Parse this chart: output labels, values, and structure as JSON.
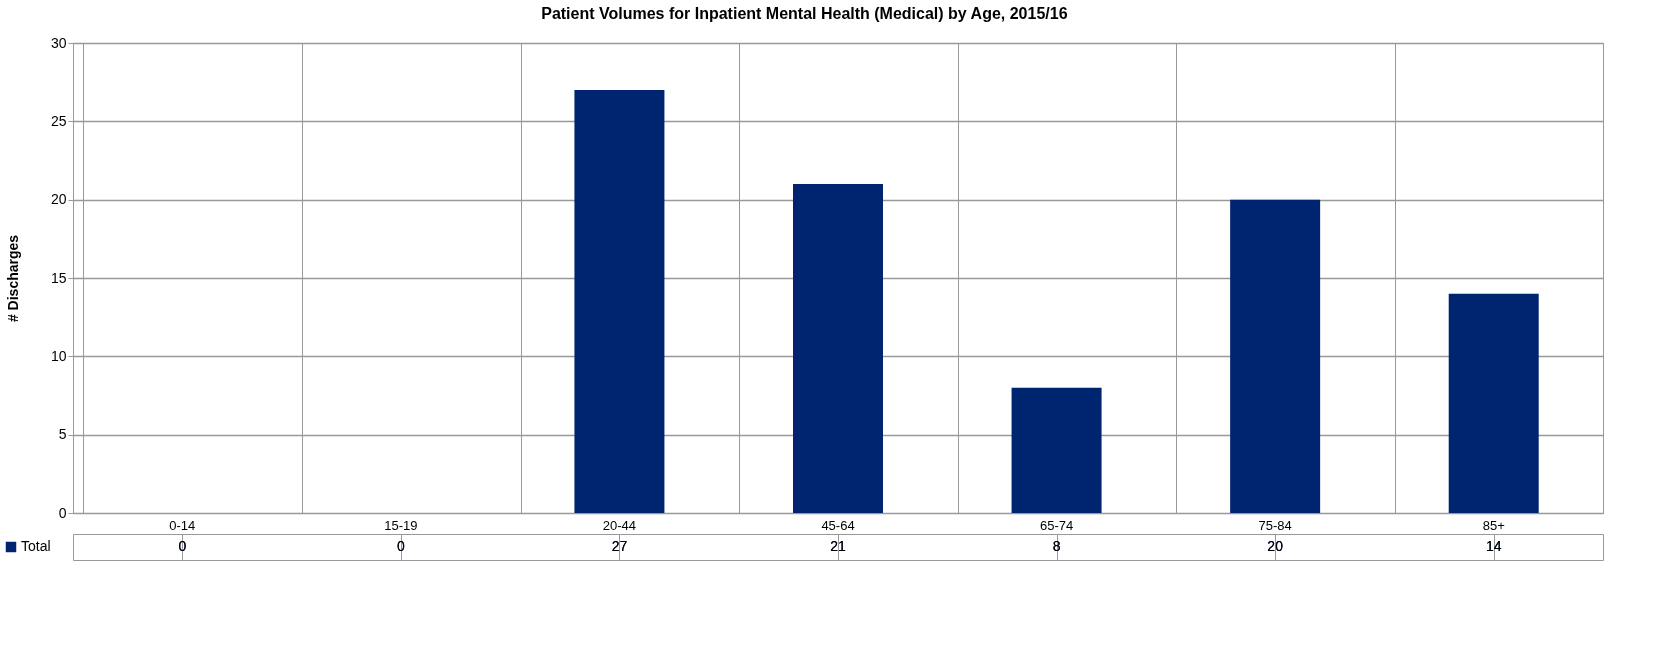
{
  "chart_data": {
    "type": "bar",
    "title": "Patient Volumes for Inpatient Mental Health (Medical) by Age, 2015/16",
    "ylabel": "# Discharges",
    "categories": [
      "0-14",
      "15-19",
      "20-44",
      "45-64",
      "65-74",
      "75-84",
      "85+"
    ],
    "series": [
      {
        "name": "Total",
        "color": "#002570",
        "values": [
          0,
          0,
          27,
          21,
          8,
          20,
          14
        ]
      }
    ],
    "ylim": [
      0,
      30
    ],
    "yticks": [
      0,
      5,
      10,
      15,
      20,
      25,
      30
    ],
    "grid": "y",
    "data_labels": true
  }
}
